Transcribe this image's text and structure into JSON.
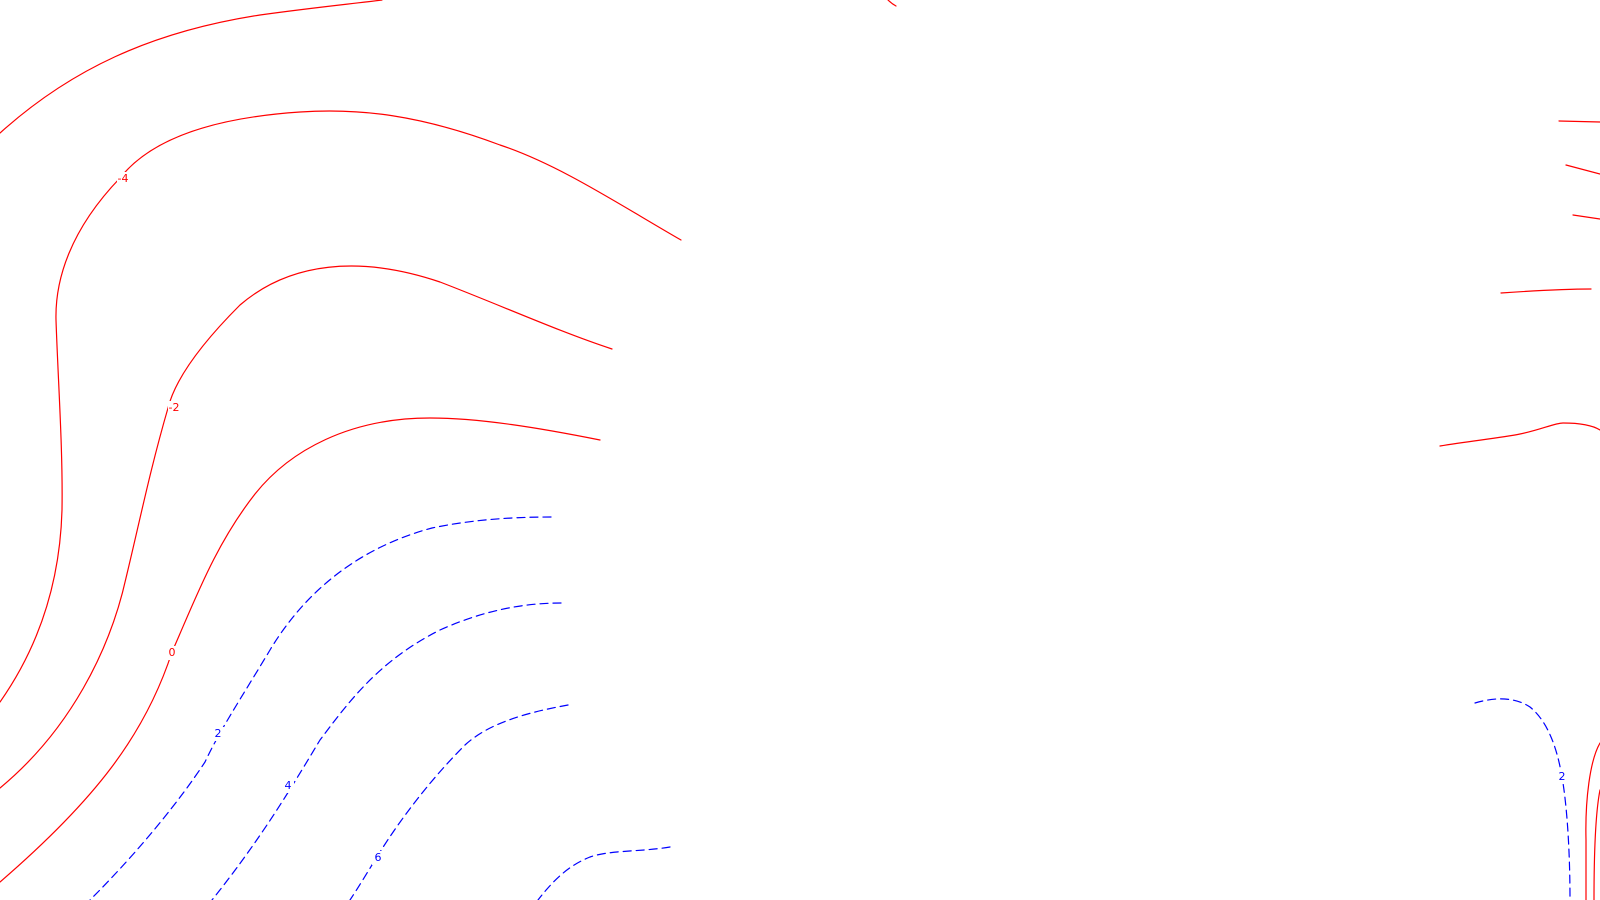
{
  "chart_data": {
    "type": "contour",
    "title": "",
    "xlabel": "",
    "ylabel": "",
    "grid": false,
    "legend": "none",
    "styles": {
      "negative_and_zero": {
        "color": "#ff0000",
        "line": "solid"
      },
      "positive": {
        "color": "#0000ff",
        "line": "dashed"
      }
    },
    "contour_levels": [
      "-4",
      "-2",
      "0",
      "2",
      "4",
      "6"
    ],
    "level_labels": [
      {
        "key": "m4",
        "text": "-4",
        "color": "#ff0000"
      },
      {
        "key": "m2",
        "text": "-2",
        "color": "#ff0000"
      },
      {
        "key": "z0",
        "text": "0",
        "color": "#ff0000"
      },
      {
        "key": "p2",
        "text": "2",
        "color": "#0000ff"
      },
      {
        "key": "p4",
        "text": "4",
        "color": "#0000ff"
      },
      {
        "key": "p6",
        "text": "6",
        "color": "#0000ff"
      },
      {
        "key": "p2r",
        "text": "2",
        "color": "#0000ff"
      }
    ]
  }
}
